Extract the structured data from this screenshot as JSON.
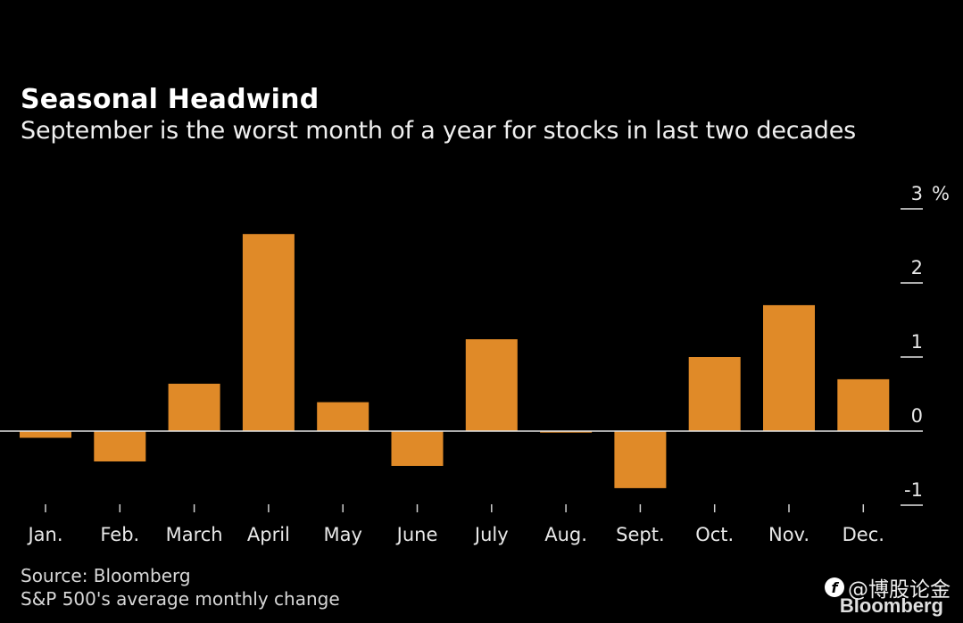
{
  "header": {
    "title": "Seasonal Headwind",
    "subtitle": "September is the worst month of a year for stocks in last two decades"
  },
  "footer": {
    "source": "Source: Bloomberg",
    "note": "S&P 500's average monthly change"
  },
  "watermark": {
    "icon": "weibo-style-logo-icon",
    "handle": "@博股论金",
    "brand": "Bloomberg"
  },
  "colors": {
    "background": "#000000",
    "bar": "#E08A28",
    "axis": "#e6e6e6",
    "text": "#ffffff"
  },
  "chart_data": {
    "type": "bar",
    "title": "Seasonal Headwind",
    "subtitle": "September is the worst month of a year for stocks in last two decades",
    "xlabel": "",
    "ylabel": "%",
    "categories": [
      "Jan.",
      "Feb.",
      "March",
      "April",
      "May",
      "June",
      "July",
      "Aug.",
      "Sept.",
      "Oct.",
      "Nov.",
      "Dec."
    ],
    "series": [
      {
        "name": "S&P 500's average monthly change",
        "values": [
          -0.09,
          -0.41,
          0.64,
          2.66,
          0.39,
          -0.47,
          1.24,
          -0.02,
          -0.77,
          1.0,
          1.7,
          0.7
        ]
      }
    ],
    "ylim": [
      -1,
      3
    ],
    "yticks": [
      3,
      2,
      1,
      0,
      -1
    ],
    "ytick_labels": [
      "3 %",
      "2",
      "1",
      "0",
      "-1"
    ],
    "y_axis_position": "right",
    "grid": false,
    "legend": "none",
    "source": "Source: Bloomberg",
    "note": "S&P 500's average monthly change"
  }
}
